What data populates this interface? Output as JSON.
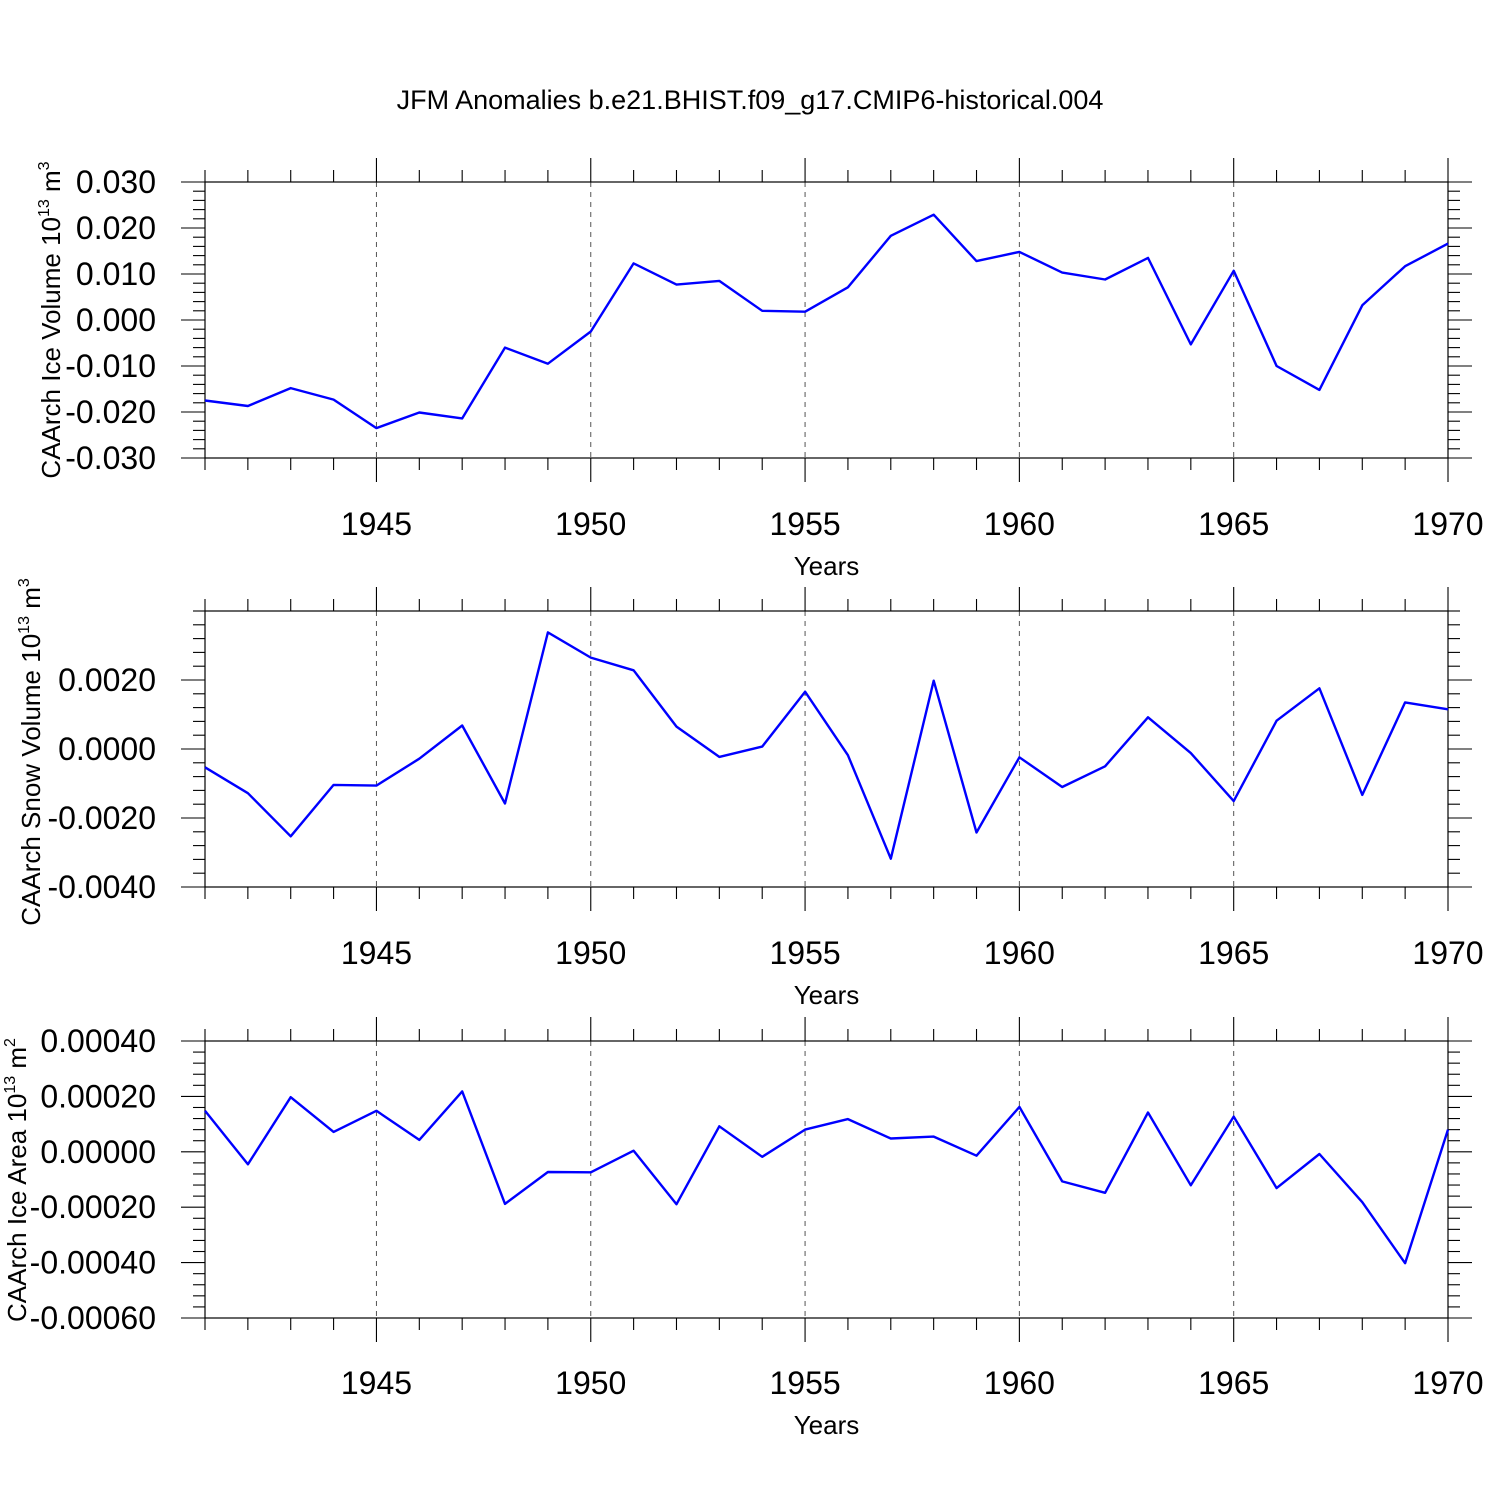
{
  "title": "JFM Anomalies b.e21.BHIST.f09_g17.CMIP6-historical.004",
  "colors": {
    "series": "#0000ff",
    "axes": "#000000",
    "grid": "#555555"
  },
  "chart_data": [
    {
      "type": "line",
      "xlabel": "Years",
      "ylabel": "CAArch Ice Volume 10",
      "ylabel_sup": "13",
      "ylabel_unit": "m",
      "ylabel_unit_sup": "3",
      "xlim": [
        1941,
        1970
      ],
      "ylim": [
        -0.03,
        0.03
      ],
      "grid": "vertical dashed at 5-year ticks",
      "xticks": [
        1945,
        1950,
        1955,
        1960,
        1965,
        1970
      ],
      "yticks": [
        -0.03,
        -0.02,
        -0.01,
        0.0,
        0.01,
        0.02,
        0.03
      ],
      "ytick_labels": [
        "-0.030",
        "-0.020",
        "-0.010",
        "0.000",
        "0.010",
        "0.020",
        "0.030"
      ],
      "x": [
        1941,
        1942,
        1943,
        1944,
        1945,
        1946,
        1947,
        1948,
        1949,
        1950,
        1951,
        1952,
        1953,
        1954,
        1955,
        1956,
        1957,
        1958,
        1959,
        1960,
        1961,
        1962,
        1963,
        1964,
        1965,
        1966,
        1967,
        1968,
        1969,
        1970
      ],
      "values": [
        -0.0175,
        -0.0187,
        -0.0148,
        -0.0173,
        -0.0235,
        -0.0201,
        -0.0214,
        -0.006,
        -0.0095,
        -0.0025,
        0.0123,
        0.0077,
        0.0085,
        0.002,
        0.0018,
        0.0071,
        0.0183,
        0.0229,
        0.0128,
        0.0148,
        0.0103,
        0.0088,
        0.0135,
        -0.0053,
        0.0107,
        -0.01,
        -0.0152,
        0.0032,
        0.0117,
        0.0166
      ]
    },
    {
      "type": "line",
      "xlabel": "Years",
      "ylabel": "CAArch Snow Volume 10",
      "ylabel_sup": "13",
      "ylabel_unit": "m",
      "ylabel_unit_sup": "3",
      "xlim": [
        1941,
        1970
      ],
      "ylim": [
        -0.004,
        0.004
      ],
      "grid": "vertical dashed at 5-year ticks",
      "xticks": [
        1945,
        1950,
        1955,
        1960,
        1965,
        1970
      ],
      "yticks": [
        -0.004,
        -0.002,
        0.0,
        0.002
      ],
      "ytick_labels": [
        "-0.0040",
        "-0.0020",
        "0.0000",
        "0.0020"
      ],
      "x": [
        1941,
        1942,
        1943,
        1944,
        1945,
        1946,
        1947,
        1948,
        1949,
        1950,
        1951,
        1952,
        1953,
        1954,
        1955,
        1956,
        1957,
        1958,
        1959,
        1960,
        1961,
        1962,
        1963,
        1964,
        1965,
        1966,
        1967,
        1968,
        1969,
        1970
      ],
      "values": [
        -0.00053,
        -0.00128,
        -0.00253,
        -0.00104,
        -0.00106,
        -0.00028,
        0.00068,
        -0.00158,
        0.00338,
        0.00265,
        0.00228,
        0.00065,
        -0.00023,
        7e-05,
        0.00166,
        -0.00018,
        -0.00318,
        0.00198,
        -0.00242,
        -0.00024,
        -0.0011,
        -0.0005,
        0.00092,
        -0.00012,
        -0.00151,
        0.00082,
        0.00176,
        -0.00133,
        0.00135,
        0.00115
      ]
    },
    {
      "type": "line",
      "xlabel": "Years",
      "ylabel": "CAArch Ice Area 10",
      "ylabel_sup": "13",
      "ylabel_unit": "m",
      "ylabel_unit_sup": "2",
      "xlim": [
        1941,
        1970
      ],
      "ylim": [
        -0.0006,
        0.0004
      ],
      "grid": "vertical dashed at 5-year ticks",
      "xticks": [
        1945,
        1950,
        1955,
        1960,
        1965,
        1970
      ],
      "yticks": [
        -0.0006,
        -0.0004,
        -0.0002,
        0.0,
        0.0002,
        0.0004
      ],
      "ytick_labels": [
        "-0.00060",
        "-0.00040",
        "-0.00020",
        "0.00000",
        "0.00020",
        "0.00040"
      ],
      "x": [
        1941,
        1942,
        1943,
        1944,
        1945,
        1946,
        1947,
        1948,
        1949,
        1950,
        1951,
        1952,
        1953,
        1954,
        1955,
        1956,
        1957,
        1958,
        1959,
        1960,
        1961,
        1962,
        1963,
        1964,
        1965,
        1966,
        1967,
        1968,
        1969,
        1970
      ],
      "values": [
        0.000148,
        -4.5e-05,
        0.000197,
        7.2e-05,
        0.000148,
        4.3e-05,
        0.000218,
        -0.000188,
        -7.3e-05,
        -7.4e-05,
        4e-06,
        -0.000189,
        9.2e-05,
        -1.8e-05,
        8e-05,
        0.000118,
        4.8e-05,
        5.5e-05,
        -1.4e-05,
        0.000162,
        -0.000107,
        -0.000148,
        0.000142,
        -0.000121,
        0.000127,
        -0.000131,
        -8e-06,
        -0.000182,
        -0.000402,
        8e-05
      ]
    }
  ]
}
